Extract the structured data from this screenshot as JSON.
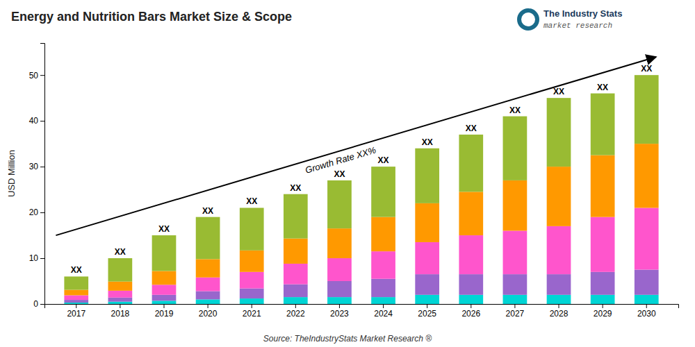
{
  "chart_data": {
    "type": "bar",
    "stacked": true,
    "grid": false,
    "title": "Energy and Nutrition Bars Market Size & Scope",
    "y_label": "USD Million",
    "categories": [
      "2017",
      "2018",
      "2019",
      "2020",
      "2021",
      "2022",
      "2023",
      "2024",
      "2025",
      "2026",
      "2027",
      "2028",
      "2029",
      "2030"
    ],
    "series": [
      {
        "color": "#00D5D5",
        "values": [
          0.3,
          0.5,
          0.7,
          1.0,
          1.2,
          1.5,
          1.5,
          1.5,
          2.0,
          2.0,
          2.0,
          2.0,
          2.0,
          2.0
        ]
      },
      {
        "color": "#9966CC",
        "values": [
          0.6,
          0.9,
          1.3,
          1.8,
          2.2,
          2.8,
          3.5,
          4.0,
          4.5,
          4.5,
          4.5,
          4.5,
          5.0,
          5.5
        ]
      },
      {
        "color": "#FF55CC",
        "values": [
          1.0,
          1.5,
          2.2,
          3.0,
          3.6,
          4.5,
          5.0,
          6.0,
          7.0,
          8.5,
          9.5,
          10.5,
          12.0,
          13.5
        ]
      },
      {
        "color": "#FF9900",
        "values": [
          1.2,
          2.0,
          3.0,
          4.0,
          4.7,
          5.5,
          6.5,
          7.5,
          8.5,
          9.5,
          11.0,
          13.0,
          13.5,
          14.0
        ]
      },
      {
        "color": "#99BB33",
        "values": [
          2.9,
          5.1,
          7.8,
          9.2,
          9.3,
          9.7,
          10.5,
          11.0,
          12.0,
          12.5,
          14.0,
          15.0,
          13.5,
          15.0
        ]
      }
    ],
    "totals": [
      6,
      10,
      15,
      19,
      21,
      24,
      27,
      30,
      34,
      37,
      41,
      45,
      46,
      50
    ],
    "total_labels": [
      "XX",
      "XX",
      "XX",
      "XX",
      "XX",
      "XX",
      "XX",
      "XX",
      "XX",
      "XX",
      "XX",
      "XX",
      "XX",
      "XX"
    ],
    "ylim": [
      0,
      57
    ],
    "yticks": [
      0,
      10,
      20,
      30,
      40,
      50
    ],
    "annotations": [
      {
        "text": "Growth Rate XX%"
      },
      {
        "text": "The Industry Stats"
      },
      {
        "text": "market research"
      },
      {
        "text": "Source: TheIndustryStats Market Research ®"
      }
    ]
  }
}
